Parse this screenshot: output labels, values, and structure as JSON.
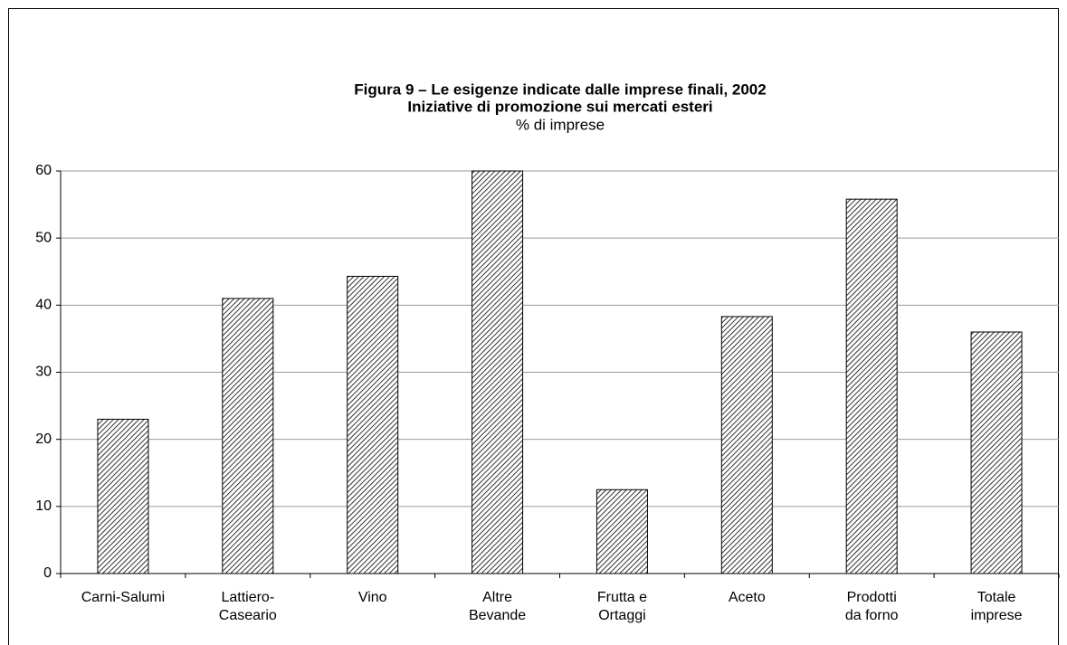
{
  "chart_data": {
    "type": "bar",
    "title": "Figura 9 – Le esigenze indicate dalle imprese finali, 2002",
    "subtitle": "Iniziative di promozione sui mercati esteri",
    "y_label": "% di imprese",
    "categories": [
      "Carni-Salumi",
      "Lattiero-\nCaseario",
      "Vino",
      "Altre\nBevande",
      "Frutta e\nOrtaggi",
      "Aceto",
      "Prodotti\nda forno",
      "Totale\nimprese"
    ],
    "values": [
      23,
      41,
      44.3,
      60,
      12.5,
      38.3,
      55.8,
      36
    ],
    "color": "#000000",
    "ylim": [
      0,
      60
    ],
    "yticks": [
      0,
      10,
      20,
      30,
      40,
      50,
      60
    ],
    "grid": true
  }
}
